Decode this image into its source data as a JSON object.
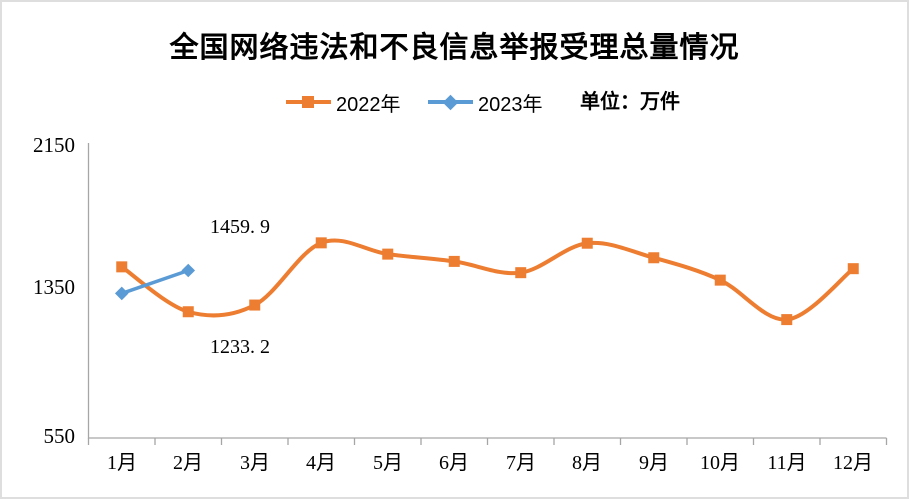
{
  "title": "全国网络违法和不良信息举报受理总量情况",
  "legend": {
    "items": [
      {
        "label": "2022年",
        "color": "#ED7D31",
        "marker": "square"
      },
      {
        "label": "2023年",
        "color": "#5B9BD5",
        "marker": "diamond"
      }
    ],
    "unit_label": "单位：万件"
  },
  "colors": {
    "series_2022": "#ED7D31",
    "series_2023": "#5B9BD5",
    "axis": "#a6a6a6",
    "text": "#000000",
    "border": "#dedede"
  },
  "chart_data": {
    "type": "line",
    "title": "全国网络违法和不良信息举报受理总量情况",
    "unit": "万件",
    "categories": [
      "1月",
      "2月",
      "3月",
      "4月",
      "5月",
      "6月",
      "7月",
      "8月",
      "9月",
      "10月",
      "11月",
      "12月"
    ],
    "series": [
      {
        "name": "2022年",
        "color": "#ED7D31",
        "marker": "square",
        "smooth": true,
        "values": [
          1480,
          1233.2,
          1270,
          1612,
          1550,
          1510,
          1448,
          1610,
          1530,
          1407,
          1190,
          1470
        ]
      },
      {
        "name": "2023年",
        "color": "#5B9BD5",
        "marker": "diamond",
        "smooth": false,
        "values": [
          1334,
          1459.9,
          null,
          null,
          null,
          null,
          null,
          null,
          null,
          null,
          null,
          null
        ]
      }
    ],
    "y_axis": {
      "ticks": [
        "2150",
        "1350",
        "550"
      ],
      "min": 550,
      "max": 2150
    },
    "annotations": [
      {
        "text": "1459. 9",
        "value": 1459.9,
        "series": "2023年",
        "category": "2月"
      },
      {
        "text": "1233. 2",
        "value": 1233.2,
        "series": "2022年",
        "category": "2月"
      }
    ],
    "legend_position": "top",
    "grid": false
  }
}
